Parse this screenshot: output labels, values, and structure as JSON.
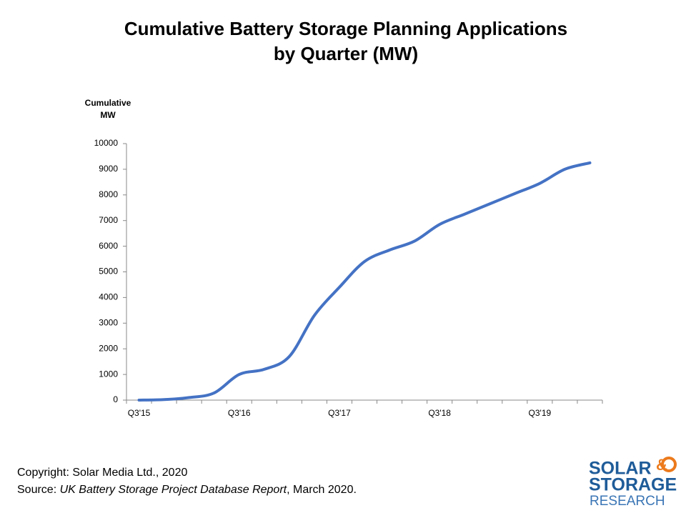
{
  "chart_data": {
    "type": "line",
    "title": [
      "Cumulative Battery Storage Planning Applications",
      "by Quarter (MW)"
    ],
    "y_label": [
      "Cumulative",
      "MW"
    ],
    "categories": [
      "Q3'15",
      null,
      null,
      null,
      "Q3'16",
      null,
      null,
      null,
      "Q3'17",
      null,
      null,
      null,
      "Q3'18",
      null,
      null,
      null,
      "Q3'19",
      null,
      null
    ],
    "series": [
      {
        "name": "Cumulative MW",
        "color": "#4472c4",
        "values": [
          0,
          20,
          100,
          280,
          1000,
          1200,
          1700,
          3300,
          4400,
          5400,
          5850,
          6200,
          6850,
          7250,
          7650,
          8050,
          8450,
          9000,
          9250
        ]
      }
    ],
    "ylim": [
      0,
      10000
    ],
    "yticks": [
      0,
      1000,
      2000,
      3000,
      4000,
      5000,
      6000,
      7000,
      8000,
      9000,
      10000
    ],
    "grid": false,
    "smooth": true
  },
  "footer": {
    "copyright": "Copyright: Solar Media Ltd., 2020",
    "source_prefix": "Source: ",
    "source_title": "UK Battery Storage Project Database Report",
    "source_suffix": ", March 2020."
  },
  "logo": {
    "line1": "SOLAR",
    "amp": "&",
    "line2": "STORAGE",
    "line3": "RESEARCH"
  }
}
